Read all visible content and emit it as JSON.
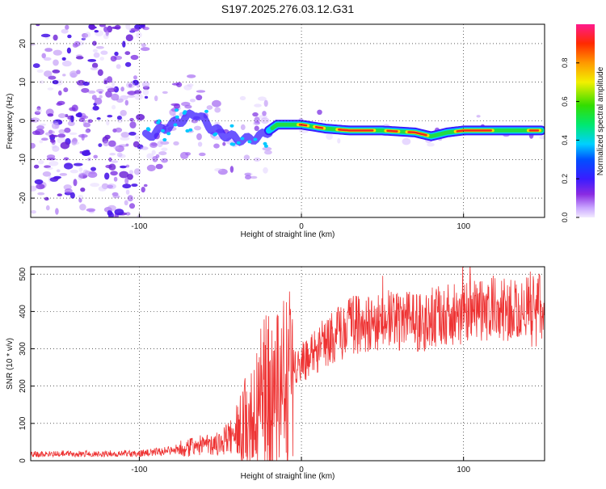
{
  "title": "S197.2025.276.03.12.G31",
  "chart_data": [
    {
      "type": "heatmap",
      "title": "S197.2025.276.03.12.G31",
      "xlabel": "Height of straight line (km)",
      "ylabel": "Frequency (Hz)",
      "xlim": [
        -167,
        150
      ],
      "ylim": [
        -25,
        25
      ],
      "xticks": [
        -100,
        0,
        100
      ],
      "yticks": [
        -20,
        -10,
        0,
        10,
        20
      ],
      "trace": {
        "description": "dominant frequency ridge",
        "x": [
          -95,
          -80,
          -65,
          -55,
          -45,
          -35,
          -25,
          -15,
          0,
          15,
          30,
          50,
          70,
          80,
          90,
          100,
          120,
          140,
          148
        ],
        "y": [
          -4,
          -1,
          2,
          -2,
          -4,
          -5,
          -4,
          -1,
          -1,
          -2,
          -2.5,
          -2.5,
          -3,
          -4,
          -3,
          -2.5,
          -2.5,
          -2.5,
          -2.5
        ]
      },
      "colorbar": {
        "label": "Normalized spectral amplitude",
        "range": [
          0.0,
          1.0
        ],
        "ticks": [
          "0.0",
          "0.2",
          "0.4",
          "0.6",
          "0.8"
        ],
        "tick_values": [
          0.0,
          0.2,
          0.4,
          0.6,
          0.8
        ]
      }
    },
    {
      "type": "line",
      "xlabel": "Height of straight line (km)",
      "ylabel": "SNR (10 * v/v)",
      "xlim": [
        -167,
        150
      ],
      "ylim": [
        0,
        520
      ],
      "xticks": [
        -100,
        0,
        100
      ],
      "yticks": [
        0,
        100,
        200,
        300,
        400,
        500
      ],
      "series": [
        {
          "name": "SNR",
          "color": "#ee3333",
          "x": [
            -167,
            -140,
            -120,
            -100,
            -85,
            -70,
            -55,
            -45,
            -38,
            -30,
            -20,
            -10,
            0,
            10,
            20,
            30,
            40,
            50,
            60,
            70,
            80,
            90,
            100,
            110,
            120,
            130,
            140,
            150
          ],
          "y": [
            18,
            18,
            19,
            20,
            25,
            35,
            45,
            60,
            80,
            150,
            200,
            230,
            260,
            300,
            330,
            360,
            370,
            380,
            380,
            370,
            380,
            390,
            390,
            400,
            410,
            400,
            410,
            420
          ]
        }
      ]
    }
  ]
}
